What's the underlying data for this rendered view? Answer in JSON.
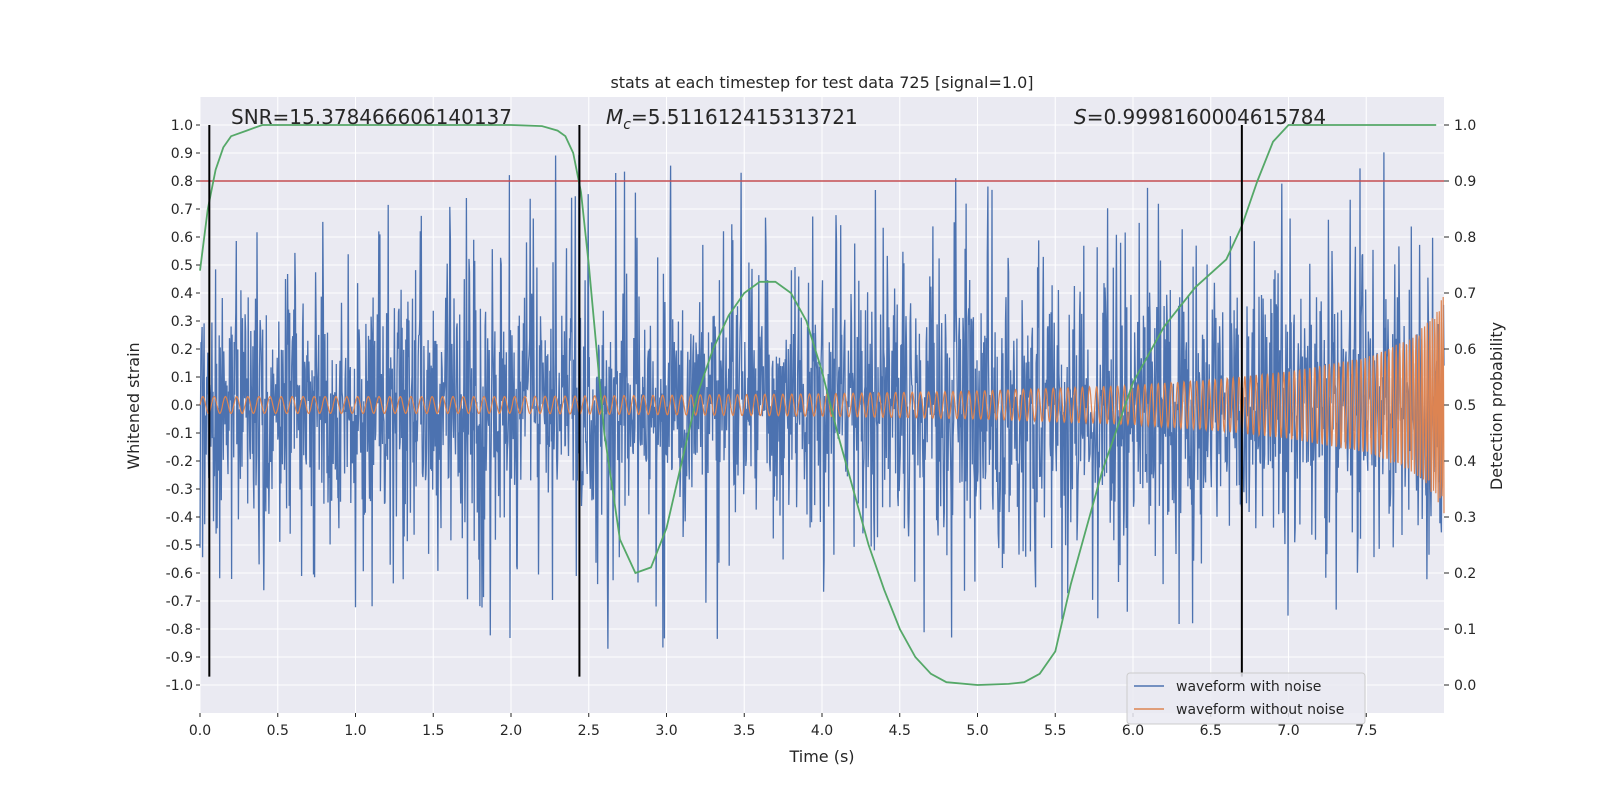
{
  "chart_data": {
    "type": "line",
    "title": "stats at each timestep for test data 725 [signal=1.0]",
    "xlabel": "Time (s)",
    "ylabel": "Whitened strain",
    "y2label": "Detection probability",
    "xlim": [
      0,
      8
    ],
    "ylim": [
      -1.1,
      1.1
    ],
    "y2lim": [
      -0.05,
      1.05
    ],
    "x_ticks": [
      0.0,
      0.5,
      1.0,
      1.5,
      2.0,
      2.5,
      3.0,
      3.5,
      4.0,
      4.5,
      5.0,
      5.5,
      6.0,
      6.5,
      7.0,
      7.5
    ],
    "x_tick_labels": [
      "0.0",
      "0.5",
      "1.0",
      "1.5",
      "2.0",
      "2.5",
      "3.0",
      "3.5",
      "4.0",
      "4.5",
      "5.0",
      "5.5",
      "6.0",
      "6.5",
      "7.0",
      "7.5"
    ],
    "y_ticks": [
      1.0,
      0.9,
      0.8,
      0.7,
      0.6,
      0.5,
      0.4,
      0.3,
      0.2,
      0.1,
      0.0,
      -0.1,
      -0.2,
      -0.3,
      -0.4,
      -0.5,
      -0.6,
      -0.7,
      -0.8,
      -0.9,
      -1.0
    ],
    "y_tick_labels": [
      "1.0",
      "0.9",
      "0.8",
      "0.7",
      "0.6",
      "0.5",
      "0.4",
      "0.3",
      "0.2",
      "0.1",
      "0.0",
      "-0.1",
      "-0.2",
      "-0.3",
      "-0.4",
      "-0.5",
      "-0.6",
      "-0.7",
      "-0.8",
      "-0.9",
      "-1.0"
    ],
    "y2_ticks": [
      1.0,
      0.9,
      0.8,
      0.7,
      0.6,
      0.5,
      0.4,
      0.3,
      0.2,
      0.1,
      0.0
    ],
    "y2_tick_labels": [
      "1.0",
      "0.9",
      "0.8",
      "0.7",
      "0.6",
      "0.5",
      "0.4",
      "0.3",
      "0.2",
      "0.1",
      "0.0"
    ],
    "grid": true,
    "annotations": {
      "snr": "SNR=15.378466606140137",
      "mc_symbol": "M",
      "mc_sub": "c",
      "mc_value": "=5.511612415313721",
      "s_symbol": "S",
      "s_value": "=0.9998160004615784"
    },
    "threshold": {
      "value": 0.9,
      "axis": "y2",
      "color": "#c44e52"
    },
    "vlines": [
      0.06,
      2.44,
      6.7
    ],
    "vline_range": [
      -0.97,
      1.0
    ],
    "legend": {
      "placement": "lower-right",
      "entries": [
        "waveform with noise",
        "waveform without noise"
      ]
    },
    "series": [
      {
        "name": "waveform with noise",
        "color": "#4c72b0",
        "kind": "noisy-strain",
        "band_max": [
          [
            0,
            0.85
          ],
          [
            1,
            0.72
          ],
          [
            2,
            0.9
          ],
          [
            3,
            0.92
          ],
          [
            4,
            0.78
          ],
          [
            5,
            0.82
          ],
          [
            6,
            0.88
          ],
          [
            7,
            0.8
          ],
          [
            7.8,
            1.0
          ],
          [
            8,
            0.55
          ]
        ],
        "band_min": [
          [
            0,
            -0.6
          ],
          [
            1,
            -0.75
          ],
          [
            2,
            -0.85
          ],
          [
            3,
            -0.9
          ],
          [
            4,
            -0.85
          ],
          [
            5,
            -0.85
          ],
          [
            6,
            -0.8
          ],
          [
            7,
            -0.8
          ],
          [
            8,
            -0.6
          ]
        ]
      },
      {
        "name": "waveform without noise",
        "color": "#dd8452",
        "kind": "chirp",
        "envelope": [
          [
            0,
            0.03
          ],
          [
            2,
            0.03
          ],
          [
            4,
            0.04
          ],
          [
            5,
            0.05
          ],
          [
            6,
            0.07
          ],
          [
            6.5,
            0.09
          ],
          [
            7,
            0.12
          ],
          [
            7.5,
            0.17
          ],
          [
            7.8,
            0.24
          ],
          [
            7.95,
            0.33
          ],
          [
            8,
            0.4
          ]
        ]
      },
      {
        "name": "Detection probability",
        "color": "#55a868",
        "axis": "y2",
        "x": [
          0.0,
          0.05,
          0.1,
          0.15,
          0.2,
          0.3,
          0.4,
          0.5,
          0.6,
          1.0,
          1.5,
          2.0,
          2.2,
          2.3,
          2.35,
          2.4,
          2.45,
          2.5,
          2.6,
          2.7,
          2.8,
          2.9,
          3.0,
          3.1,
          3.2,
          3.3,
          3.4,
          3.5,
          3.6,
          3.7,
          3.8,
          3.9,
          4.0,
          4.1,
          4.2,
          4.3,
          4.4,
          4.5,
          4.6,
          4.7,
          4.8,
          5.0,
          5.2,
          5.3,
          5.4,
          5.5,
          5.6,
          5.8,
          6.0,
          6.2,
          6.4,
          6.6,
          6.7,
          6.8,
          6.9,
          7.0,
          7.2,
          7.5,
          7.95
        ],
        "y": [
          0.74,
          0.85,
          0.92,
          0.96,
          0.98,
          0.99,
          1.0,
          1.0,
          1.0,
          1.0,
          1.0,
          1.0,
          0.998,
          0.99,
          0.98,
          0.95,
          0.88,
          0.75,
          0.45,
          0.26,
          0.2,
          0.21,
          0.28,
          0.4,
          0.52,
          0.6,
          0.66,
          0.7,
          0.72,
          0.72,
          0.7,
          0.65,
          0.56,
          0.45,
          0.35,
          0.25,
          0.17,
          0.1,
          0.05,
          0.02,
          0.005,
          0.0,
          0.002,
          0.005,
          0.02,
          0.06,
          0.18,
          0.38,
          0.54,
          0.64,
          0.71,
          0.76,
          0.82,
          0.9,
          0.97,
          1.0,
          1.0,
          1.0,
          1.0
        ]
      }
    ]
  }
}
